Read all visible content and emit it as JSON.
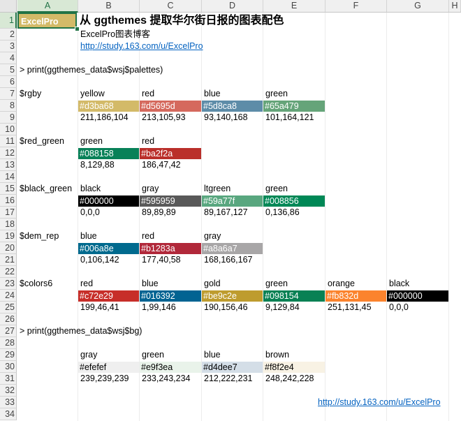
{
  "columns": [
    "A",
    "B",
    "C",
    "D",
    "E",
    "F",
    "G",
    "H"
  ],
  "rows": [
    "1",
    "2",
    "3",
    "4",
    "5",
    "6",
    "7",
    "8",
    "9",
    "10",
    "11",
    "12",
    "13",
    "14",
    "15",
    "16",
    "17",
    "18",
    "19",
    "20",
    "21",
    "22",
    "23",
    "24",
    "25",
    "26",
    "27",
    "28",
    "29",
    "30",
    "31",
    "32",
    "33",
    "34"
  ],
  "selected_cell_label": "ExcelPro",
  "selected_cell_color": "#d3ba68",
  "title": "从 ggthemes 提取华尔街日报的图表配色",
  "subtitle": "ExcelPro图表博客",
  "link_top": "http://study.163.com/u/ExcelPro",
  "cmd_palettes": "> print(ggthemes_data$wsj$palettes)",
  "cmd_bg": "> print(ggthemes_data$wsj$bg)",
  "link_bottom": "http://study.163.com/u/ExcelPro",
  "palettes": [
    {
      "name": "$rgby",
      "colors": [
        {
          "label": "yellow",
          "hex": "#d3ba68",
          "rgb": "211,186,104",
          "text_color": "#ffffff"
        },
        {
          "label": "red",
          "hex": "#d5695d",
          "rgb": "213,105,93",
          "text_color": "#ffffff"
        },
        {
          "label": "blue",
          "hex": "#5d8ca8",
          "rgb": "93,140,168",
          "text_color": "#ffffff"
        },
        {
          "label": "green",
          "hex": "#65a479",
          "rgb": "101,164,121",
          "text_color": "#ffffff"
        }
      ]
    },
    {
      "name": "$red_green",
      "colors": [
        {
          "label": "green",
          "hex": "#088158",
          "rgb": "8,129,88",
          "text_color": "#ffffff"
        },
        {
          "label": "red",
          "hex": "#ba2f2a",
          "rgb": "186,47,42",
          "text_color": "#ffffff"
        }
      ]
    },
    {
      "name": "$black_green",
      "colors": [
        {
          "label": "black",
          "hex": "#000000",
          "rgb": "0,0,0",
          "text_color": "#ffffff"
        },
        {
          "label": "gray",
          "hex": "#595959",
          "rgb": "89,89,89",
          "text_color": "#ffffff"
        },
        {
          "label": "ltgreen",
          "hex": "#59a77f",
          "rgb": "89,167,127",
          "text_color": "#ffffff"
        },
        {
          "label": "green",
          "hex": "#008856",
          "rgb": "0,136,86",
          "text_color": "#ffffff"
        }
      ]
    },
    {
      "name": "$dem_rep",
      "colors": [
        {
          "label": "blue",
          "hex": "#006a8e",
          "rgb": "0,106,142",
          "text_color": "#ffffff"
        },
        {
          "label": "red",
          "hex": "#b1283a",
          "rgb": "177,40,58",
          "text_color": "#ffffff"
        },
        {
          "label": "gray",
          "hex": "#a8a6a7",
          "rgb": "168,166,167",
          "text_color": "#ffffff"
        }
      ]
    },
    {
      "name": "$colors6",
      "colors": [
        {
          "label": "red",
          "hex": "#c72e29",
          "rgb": "199,46,41",
          "text_color": "#ffffff"
        },
        {
          "label": "blue",
          "hex": "#016392",
          "rgb": "1,99,146",
          "text_color": "#ffffff"
        },
        {
          "label": "gold",
          "hex": "#be9c2e",
          "rgb": "190,156,46",
          "text_color": "#ffffff"
        },
        {
          "label": "green",
          "hex": "#098154",
          "rgb": "9,129,84",
          "text_color": "#ffffff"
        },
        {
          "label": "orange",
          "hex": "#fb832d",
          "rgb": "251,131,45",
          "text_color": "#ffffff"
        },
        {
          "label": "black",
          "hex": "#000000",
          "rgb": "0,0,0",
          "text_color": "#ffffff"
        }
      ]
    }
  ],
  "bg": [
    {
      "label": "gray",
      "hex": "#efefef",
      "rgb": "239,239,239",
      "text_color": "#000000"
    },
    {
      "label": "green",
      "hex": "#e9f3ea",
      "rgb": "233,243,234",
      "text_color": "#000000"
    },
    {
      "label": "blue",
      "hex": "#d4dee7",
      "rgb": "212,222,231",
      "text_color": "#000000"
    },
    {
      "label": "brown",
      "hex": "#f8f2e4",
      "rgb": "248,242,228",
      "text_color": "#000000"
    }
  ]
}
